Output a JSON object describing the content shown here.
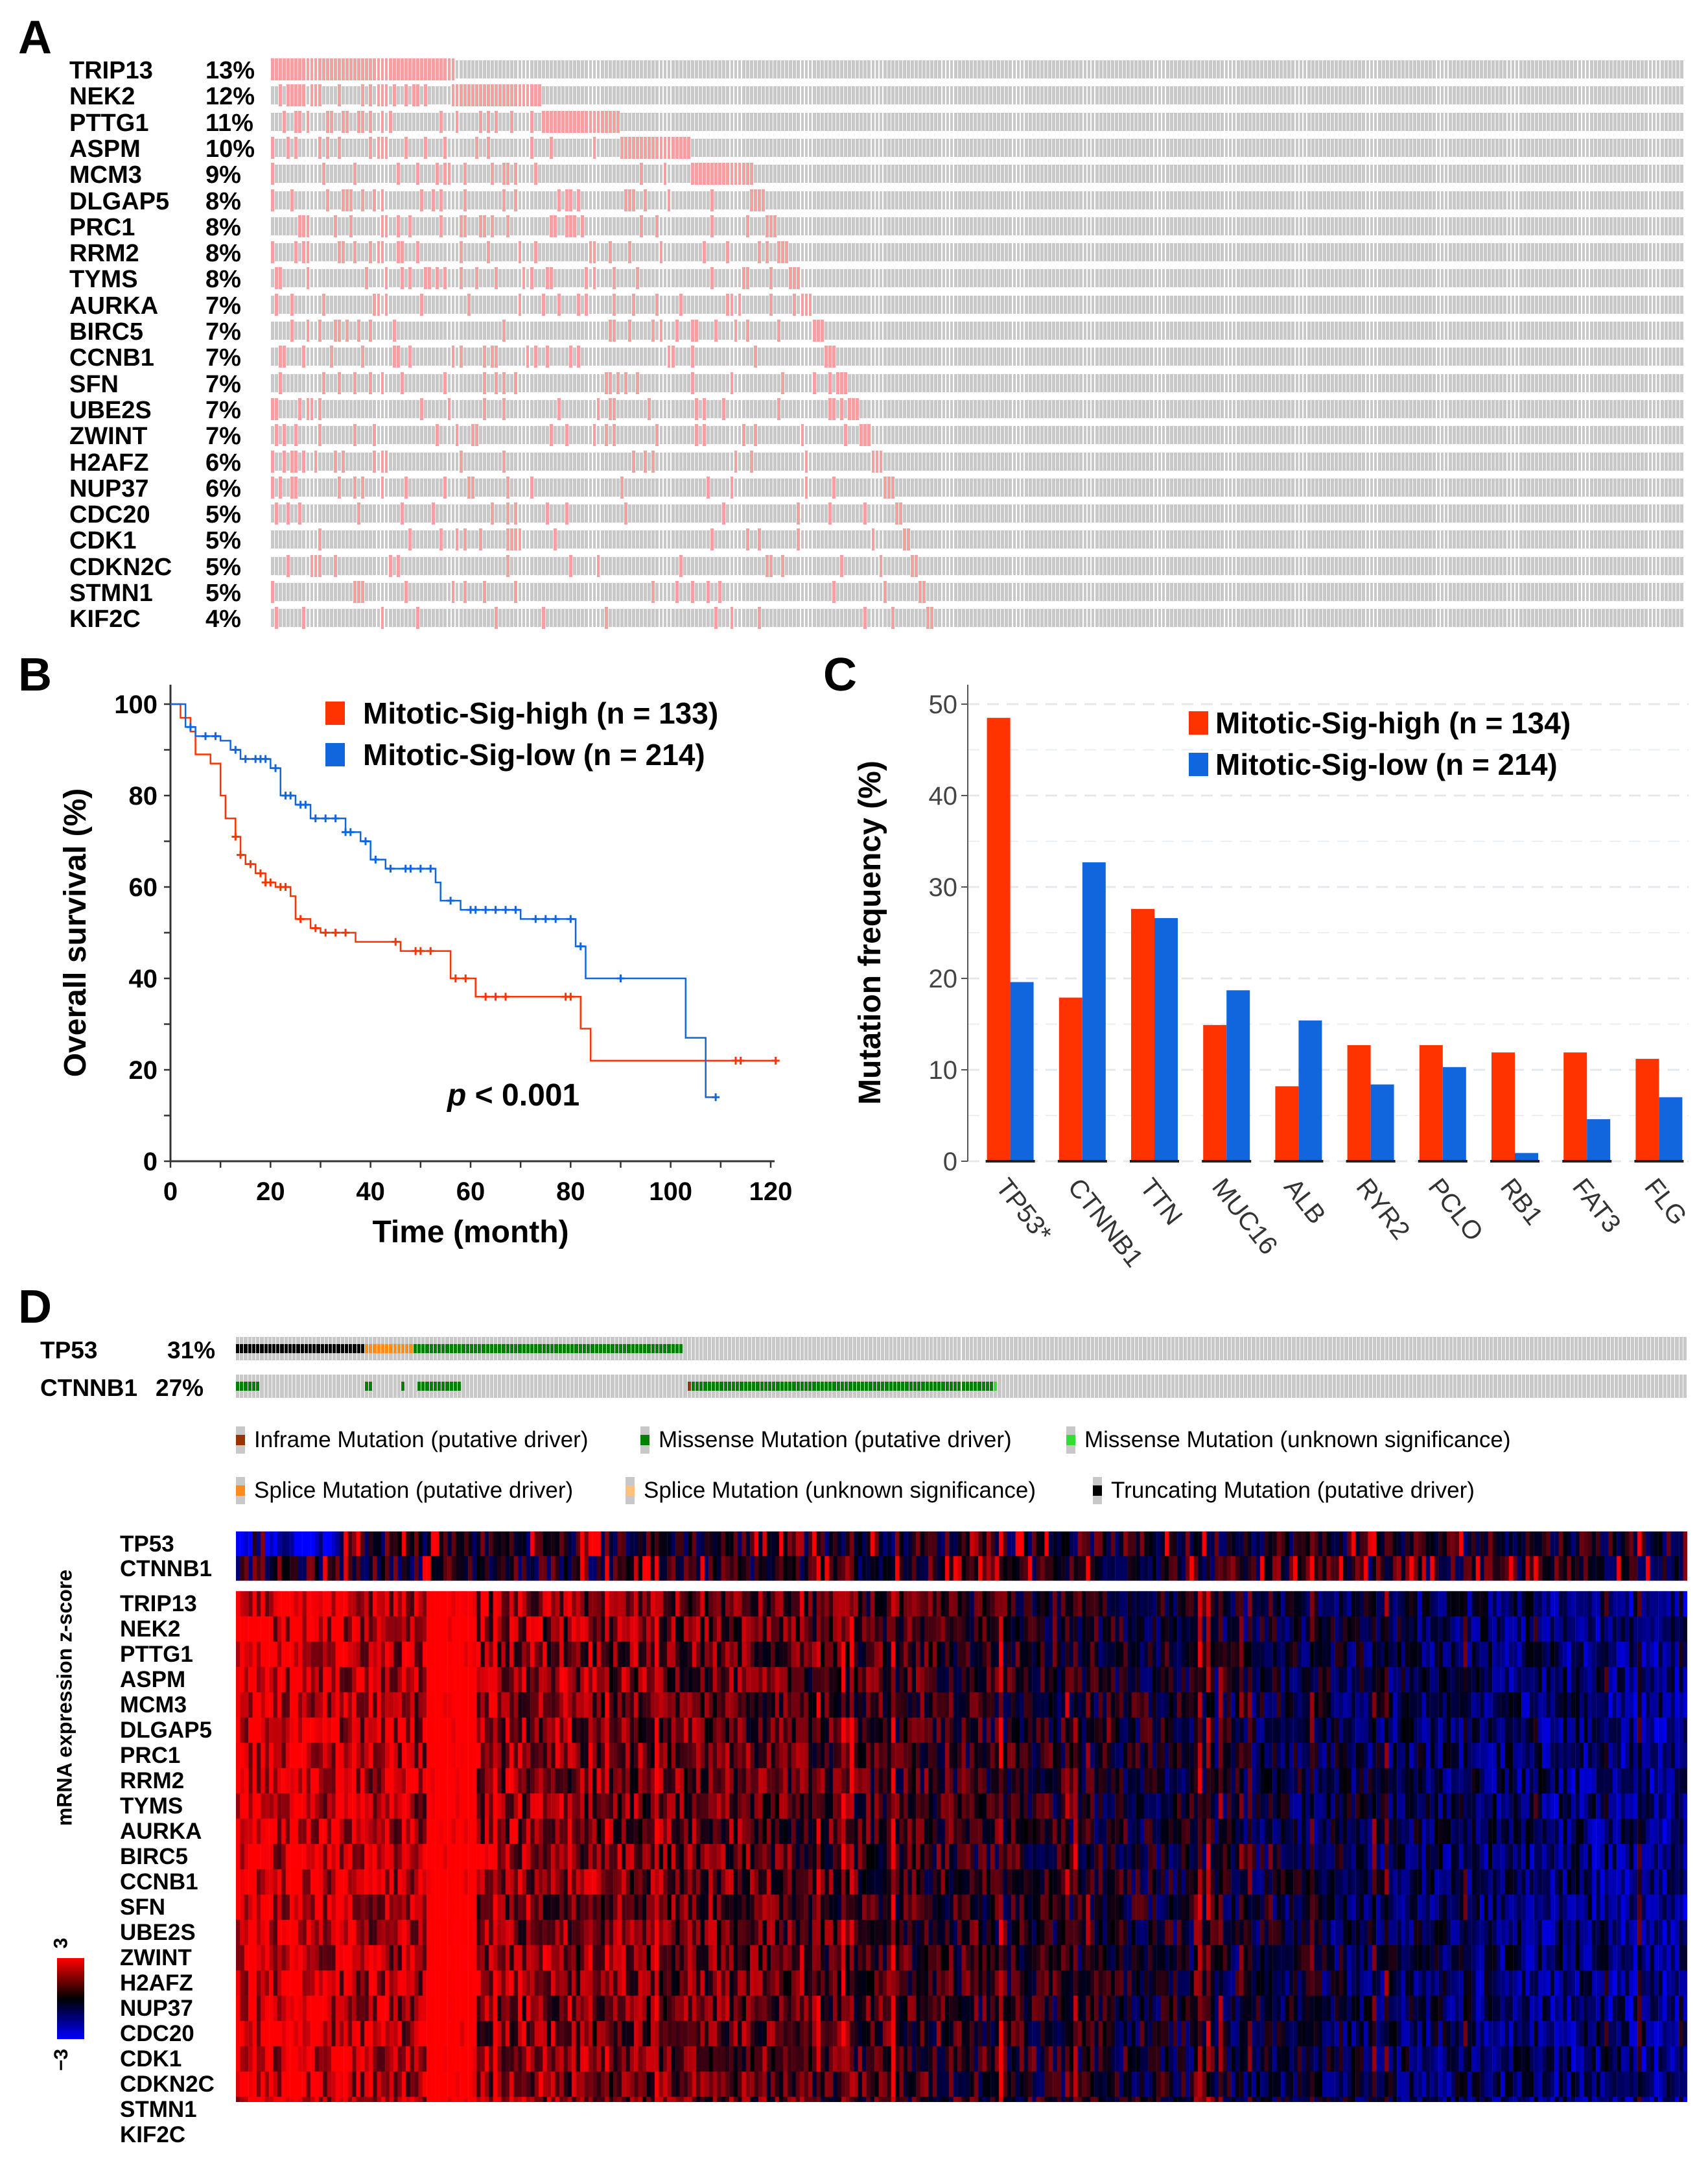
{
  "panels": {
    "a": "A",
    "b": "B",
    "c": "C",
    "d": "D"
  },
  "panel_a": {
    "genes": [
      {
        "name": "TRIP13",
        "pct": "13%"
      },
      {
        "name": "NEK2",
        "pct": "12%"
      },
      {
        "name": "PTTG1",
        "pct": "11%"
      },
      {
        "name": "ASPM",
        "pct": "10%"
      },
      {
        "name": "MCM3",
        "pct": "9%"
      },
      {
        "name": "DLGAP5",
        "pct": "8%"
      },
      {
        "name": "PRC1",
        "pct": "8%"
      },
      {
        "name": "RRM2",
        "pct": "8%"
      },
      {
        "name": "TYMS",
        "pct": "8%"
      },
      {
        "name": "AURKA",
        "pct": "7%"
      },
      {
        "name": "BIRC5",
        "pct": "7%"
      },
      {
        "name": "CCNB1",
        "pct": "7%"
      },
      {
        "name": "SFN",
        "pct": "7%"
      },
      {
        "name": "UBE2S",
        "pct": "7%"
      },
      {
        "name": "ZWINT",
        "pct": "7%"
      },
      {
        "name": "H2AFZ",
        "pct": "6%"
      },
      {
        "name": "NUP37",
        "pct": "6%"
      },
      {
        "name": "CDC20",
        "pct": "5%"
      },
      {
        "name": "CDK1",
        "pct": "5%"
      },
      {
        "name": "CDKN2C",
        "pct": "5%"
      },
      {
        "name": "STMN1",
        "pct": "5%"
      },
      {
        "name": "KIF2C",
        "pct": "4%"
      }
    ],
    "colors": {
      "altered": "#f4a0a0",
      "unaltered": "#c8c8c8"
    }
  },
  "chart_data": [
    {
      "type": "line",
      "title": "",
      "xlabel": "Time (month)",
      "ylabel": "Overall survival (%)",
      "xlim": [
        0,
        120
      ],
      "ylim": [
        0,
        100
      ],
      "xticks": [
        0,
        20,
        40,
        60,
        80,
        100,
        120
      ],
      "yticks": [
        0,
        20,
        40,
        60,
        80,
        100
      ],
      "annotation": {
        "italic": "p",
        "text": " < 0.001"
      },
      "legend_position": "top-right",
      "series": [
        {
          "name": "Mitotic-Sig-high (n = 133)",
          "color": "#ff3300",
          "x": [
            0,
            2,
            4,
            5,
            8,
            10,
            11,
            13,
            14,
            15,
            17,
            19,
            21,
            24,
            25,
            28,
            30,
            37,
            46,
            56,
            61,
            82,
            84,
            121
          ],
          "y": [
            100,
            97,
            94,
            89,
            87,
            80,
            75,
            71,
            67,
            65,
            63,
            61,
            60,
            58,
            53,
            51,
            50,
            48,
            46,
            40,
            36,
            29,
            22,
            22
          ],
          "censor_x": [
            13,
            14,
            16,
            18,
            19,
            20,
            22,
            23,
            26,
            29,
            31,
            33,
            35,
            45,
            49,
            50,
            52,
            57,
            59,
            63,
            65,
            67,
            79,
            80,
            113,
            114,
            121
          ]
        },
        {
          "name": "Mitotic-Sig-low (n = 214)",
          "color": "#1166dd",
          "x": [
            0,
            3,
            5,
            10,
            12,
            14,
            20,
            22,
            25,
            28,
            35,
            38,
            40,
            43,
            53,
            54,
            58,
            70,
            81,
            83,
            103,
            107,
            109
          ],
          "y": [
            100,
            95,
            93,
            92,
            90,
            88,
            86,
            80,
            78,
            75,
            72,
            70,
            66,
            64,
            61,
            57,
            55,
            53,
            47,
            40,
            27,
            14,
            14
          ],
          "censor_x": [
            4,
            7,
            9,
            13,
            15,
            17,
            18,
            19,
            21,
            23,
            24,
            26,
            27,
            29,
            31,
            33,
            35,
            36,
            39,
            41,
            44,
            47,
            48,
            50,
            52,
            56,
            60,
            61,
            63,
            65,
            67,
            69,
            73,
            75,
            77,
            80,
            82,
            90,
            109
          ]
        }
      ]
    },
    {
      "type": "bar",
      "title": "",
      "xlabel": "",
      "ylabel": "Mutation frequency (%)",
      "ylim": [
        0,
        50
      ],
      "yticks": [
        0,
        10,
        20,
        30,
        40,
        50
      ],
      "grid": true,
      "legend_position": "top-right",
      "categories": [
        "TP53*",
        "CTNNB1",
        "TTN",
        "MUC16",
        "ALB",
        "RYR2",
        "PCLO",
        "RB1",
        "FAT3",
        "FLG"
      ],
      "series": [
        {
          "name": "Mitotic-Sig-high (n = 134)",
          "color": "#ff3300",
          "values": [
            48.5,
            17.9,
            27.6,
            14.9,
            8.2,
            12.7,
            12.7,
            11.9,
            11.9,
            11.2
          ]
        },
        {
          "name": "Mitotic-Sig-low (n = 214)",
          "color": "#1166dd",
          "values": [
            19.6,
            32.7,
            26.6,
            18.7,
            15.4,
            8.4,
            10.3,
            0.9,
            4.6,
            7.0
          ]
        }
      ]
    }
  ],
  "panel_d": {
    "oncoprint": [
      {
        "name": "TP53",
        "pct": "31%"
      },
      {
        "name": "CTNNB1",
        "pct": "27%"
      }
    ],
    "legend": [
      {
        "label": "Inframe Mutation (putative driver)",
        "color": "#993300"
      },
      {
        "label": "Missense Mutation (putative driver)",
        "color": "#008000"
      },
      {
        "label": "Missense Mutation (unknown significance)",
        "color": "#33dd33"
      },
      {
        "label": "Splice Mutation (putative driver)",
        "color": "#ff8c1a"
      },
      {
        "label": "Splice Mutation (unknown significance)",
        "color": "#ffc080"
      },
      {
        "label": "Truncating Mutation (putative driver)",
        "color": "#000000"
      }
    ],
    "heatmap_top_rows": [
      "TP53",
      "CTNNB1"
    ],
    "heatmap_rows": [
      "TRIP13",
      "NEK2",
      "PTTG1",
      "ASPM",
      "MCM3",
      "DLGAP5",
      "PRC1",
      "RRM2",
      "TYMS",
      "AURKA",
      "BIRC5",
      "CCNB1",
      "SFN",
      "UBE2S",
      "ZWINT",
      "H2AFZ",
      "NUP37",
      "CDC20",
      "CDK1",
      "CDKN2C",
      "STMN1",
      "KIF2C"
    ],
    "colorbar": {
      "label": "mRNA expression z-score",
      "max": "3",
      "min": "−3"
    }
  }
}
